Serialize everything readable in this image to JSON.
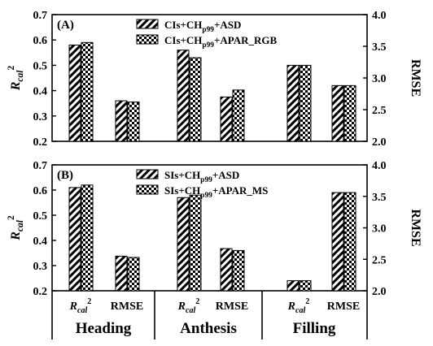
{
  "chart_data": [
    {
      "panel": "(A)",
      "type": "bar",
      "left_axis_label": "R_cal^2",
      "right_axis_label": "RMSE",
      "left_ylim": [
        0.2,
        0.7
      ],
      "left_yticks": [
        "0.2",
        "0.3",
        "0.4",
        "0.5",
        "0.6",
        "0.7"
      ],
      "right_ylim": [
        2.0,
        4.0
      ],
      "right_yticks": [
        "2.0",
        "2.5",
        "3.0",
        "3.5",
        "4.0"
      ],
      "stages": [
        "Heading",
        "Anthesis",
        "Filling"
      ],
      "metrics": [
        "Rcal2",
        "RMSE"
      ],
      "series": [
        {
          "legend": "CIs+CH_p99+ASD",
          "pattern": "diagonal",
          "rcal2": [
            0.58,
            0.56,
            0.5
          ],
          "rmse": [
            2.64,
            2.7,
            2.88
          ]
        },
        {
          "legend": "CIs+CH_p99+APAR_RGB",
          "pattern": "checker",
          "rcal2": [
            0.59,
            0.53,
            0.5
          ],
          "rmse": [
            2.62,
            2.81,
            2.88
          ]
        }
      ]
    },
    {
      "panel": "(B)",
      "type": "bar",
      "left_axis_label": "R_cal^2",
      "right_axis_label": "RMSE",
      "left_ylim": [
        0.2,
        0.7
      ],
      "left_yticks": [
        "0.2",
        "0.3",
        "0.4",
        "0.5",
        "0.6",
        "0.7"
      ],
      "right_ylim": [
        2.0,
        4.0
      ],
      "right_yticks": [
        "2.0",
        "2.5",
        "3.0",
        "3.5",
        "4.0"
      ],
      "stages": [
        "Heading",
        "Anthesis",
        "Filling"
      ],
      "metrics": [
        "Rcal2",
        "RMSE"
      ],
      "series": [
        {
          "legend": "SIs+CH_p99+ASD",
          "pattern": "diagonal",
          "rcal2": [
            0.61,
            0.57,
            0.24
          ],
          "rmse": [
            2.55,
            2.67,
            3.56
          ]
        },
        {
          "legend": "SIs+CH_p99+APAR_MS",
          "pattern": "checker",
          "rcal2": [
            0.62,
            0.58,
            0.24
          ],
          "rmse": [
            2.53,
            2.64,
            3.56
          ]
        }
      ]
    }
  ],
  "x_categories": {
    "metric_label_rcal": "R",
    "metric_label_rcal_sub": "cal",
    "metric_label_rcal_sup": "2",
    "metric_label_rmse": "RMSE"
  }
}
